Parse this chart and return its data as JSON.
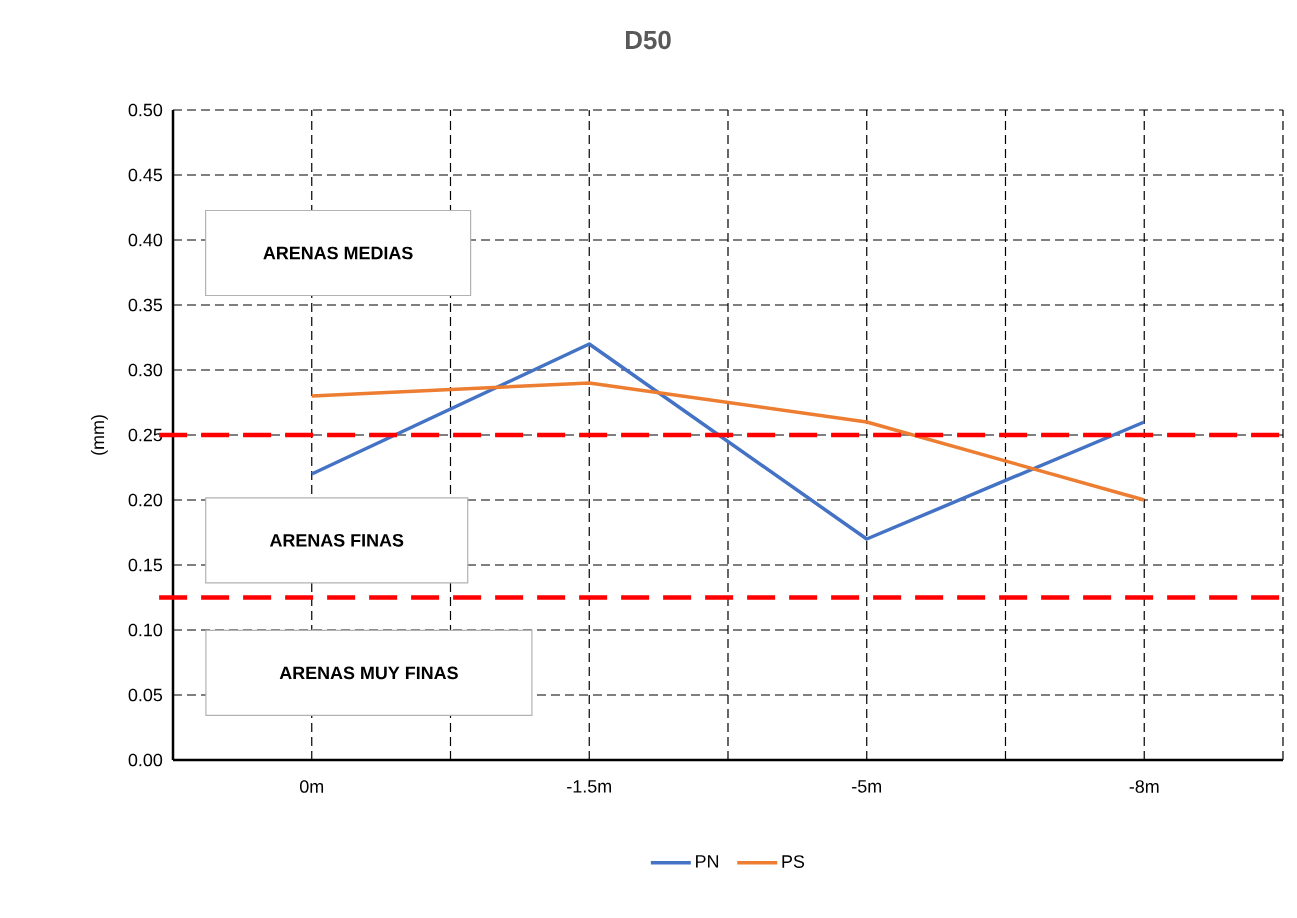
{
  "chart_data": {
    "type": "line",
    "title": "D50",
    "ylabel": "(mm)",
    "categories": [
      "0m",
      "-1.5m",
      "-5m",
      "-8m"
    ],
    "series": [
      {
        "name": "PN",
        "color": "#4472c4",
        "values": [
          0.22,
          0.32,
          0.17,
          0.26
        ]
      },
      {
        "name": "PS",
        "color": "#ed7d31",
        "values": [
          0.28,
          0.29,
          0.26,
          0.2
        ]
      }
    ],
    "ylim": [
      0,
      0.5
    ],
    "yticks": [
      {
        "value": 0,
        "label": "0.00"
      },
      {
        "value": 0.05,
        "label": "0.05"
      },
      {
        "value": 0.1,
        "label": "0.10"
      },
      {
        "value": 0.15,
        "label": "0.15"
      },
      {
        "value": 0.2,
        "label": "0.20"
      },
      {
        "value": 0.25,
        "label": "0.25"
      },
      {
        "value": 0.3,
        "label": "0.30"
      },
      {
        "value": 0.35,
        "label": "0.35"
      },
      {
        "value": 0.4,
        "label": "0.40"
      },
      {
        "value": 0.45,
        "label": "0.45"
      },
      {
        "value": 0.5,
        "label": "0.50"
      }
    ],
    "grid": true,
    "legend": "bottom",
    "line_style": "solid",
    "ref_lines": [
      {
        "axis": "y",
        "value": 0.25,
        "color": "#ff0000",
        "line_style": "dashed"
      },
      {
        "axis": "y",
        "value": 0.125,
        "color": "#ff0000",
        "line_style": "dashed"
      }
    ],
    "annotations": [
      "ARENAS MEDIAS",
      "ARENAS FINAS",
      "ARENAS MUY FINAS"
    ]
  }
}
